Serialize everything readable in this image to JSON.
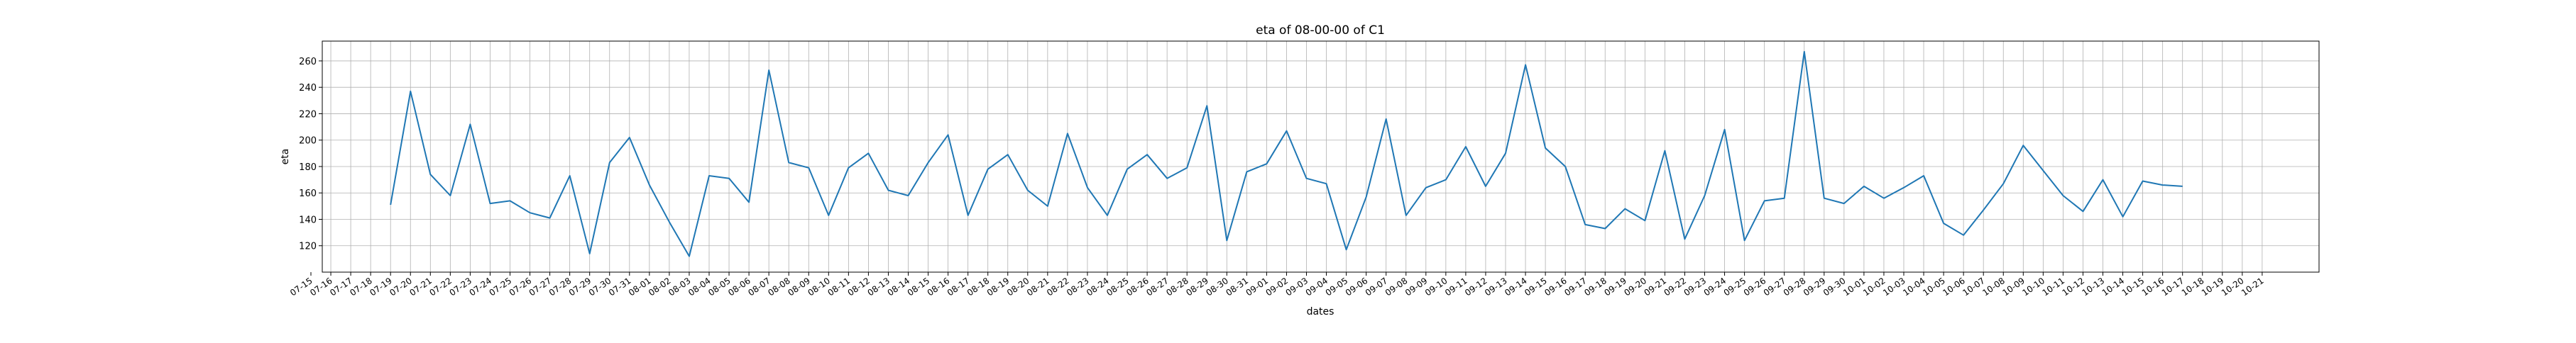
{
  "chart_data": {
    "type": "line",
    "title": "eta of 08-00-00 of C1",
    "xlabel": "dates",
    "ylabel": "eta",
    "ylim": [
      100,
      275
    ],
    "yticks": [
      120,
      140,
      160,
      180,
      200,
      220,
      240,
      260
    ],
    "grid": true,
    "line_color": "#1f77b4",
    "x_tick_labels": [
      "07-15",
      "07-16",
      "07-17",
      "07-18",
      "07-19",
      "07-20",
      "07-21",
      "07-22",
      "07-23",
      "07-24",
      "07-25",
      "07-26",
      "07-27",
      "07-28",
      "07-29",
      "07-30",
      "07-31",
      "08-01",
      "08-02",
      "08-03",
      "08-04",
      "08-05",
      "08-06",
      "08-07",
      "08-08",
      "08-09",
      "08-10",
      "08-11",
      "08-12",
      "08-13",
      "08-14",
      "08-15",
      "08-16",
      "08-17",
      "08-18",
      "08-19",
      "08-20",
      "08-21",
      "08-22",
      "08-23",
      "08-24",
      "08-25",
      "08-26",
      "08-27",
      "08-28",
      "08-29",
      "08-30",
      "08-31",
      "09-01",
      "09-02",
      "09-03",
      "09-04",
      "09-05",
      "09-06",
      "09-07",
      "09-08",
      "09-09",
      "09-10",
      "09-11",
      "09-12",
      "09-13",
      "09-14",
      "09-15",
      "09-16",
      "09-17",
      "09-18",
      "09-19",
      "09-20",
      "09-21",
      "09-22",
      "09-23",
      "09-24",
      "09-25",
      "09-26",
      "09-27",
      "09-28",
      "09-29",
      "09-30",
      "10-01",
      "10-02",
      "10-03",
      "10-04",
      "10-05",
      "10-06",
      "10-07",
      "10-08",
      "10-09",
      "10-10",
      "10-11",
      "10-12",
      "10-13",
      "10-14",
      "10-15",
      "10-16",
      "10-17",
      "10-18",
      "10-19",
      "10-20",
      "10-21"
    ],
    "series": [
      {
        "x": [
          "07-19",
          "07-20",
          "07-21",
          "07-22",
          "07-23",
          "07-24",
          "07-25",
          "07-26",
          "07-27",
          "07-28",
          "07-29",
          "07-30",
          "07-31",
          "08-01",
          "08-02",
          "08-03",
          "08-04",
          "08-05",
          "08-06",
          "08-07",
          "08-08",
          "08-09",
          "08-10",
          "08-11",
          "08-12",
          "08-13",
          "08-14",
          "08-15",
          "08-16",
          "08-17",
          "08-18",
          "08-19",
          "08-20",
          "08-21",
          "08-22",
          "08-23",
          "08-24",
          "08-25",
          "08-26",
          "08-27",
          "08-28",
          "08-29",
          "08-30",
          "08-31",
          "09-01",
          "09-02",
          "09-03",
          "09-04",
          "09-05",
          "09-06",
          "09-07",
          "09-08",
          "09-09",
          "09-10",
          "09-11",
          "09-12",
          "09-13",
          "09-14",
          "09-15",
          "09-16",
          "09-17",
          "09-18",
          "09-19",
          "09-20",
          "09-21",
          "09-22",
          "09-23",
          "09-24",
          "09-25",
          "09-26",
          "09-27",
          "09-28",
          "09-29",
          "09-30",
          "10-01",
          "10-02",
          "10-03",
          "10-04",
          "10-05",
          "10-06",
          "10-07",
          "10-08",
          "10-09",
          "10-10",
          "10-11",
          "10-12",
          "10-13",
          "10-14",
          "10-15",
          "10-16",
          "10-17"
        ],
        "values": [
          151,
          237,
          174,
          158,
          212,
          152,
          154,
          145,
          141,
          173,
          114,
          183,
          202,
          166,
          138,
          112,
          173,
          171,
          153,
          253,
          183,
          179,
          143,
          179,
          190,
          162,
          158,
          183,
          204,
          143,
          178,
          189,
          162,
          150,
          205,
          164,
          143,
          178,
          189,
          171,
          179,
          226,
          124,
          176,
          182,
          207,
          171,
          167,
          117,
          157,
          216,
          143,
          164,
          170,
          195,
          165,
          190,
          257,
          194,
          180,
          136,
          133,
          148,
          139,
          192,
          125,
          158,
          208,
          124,
          154,
          156,
          267,
          156,
          152,
          165,
          156,
          164,
          173,
          137,
          128,
          147,
          167,
          196,
          177,
          158,
          146,
          170,
          142,
          169,
          166,
          165
        ]
      }
    ]
  }
}
